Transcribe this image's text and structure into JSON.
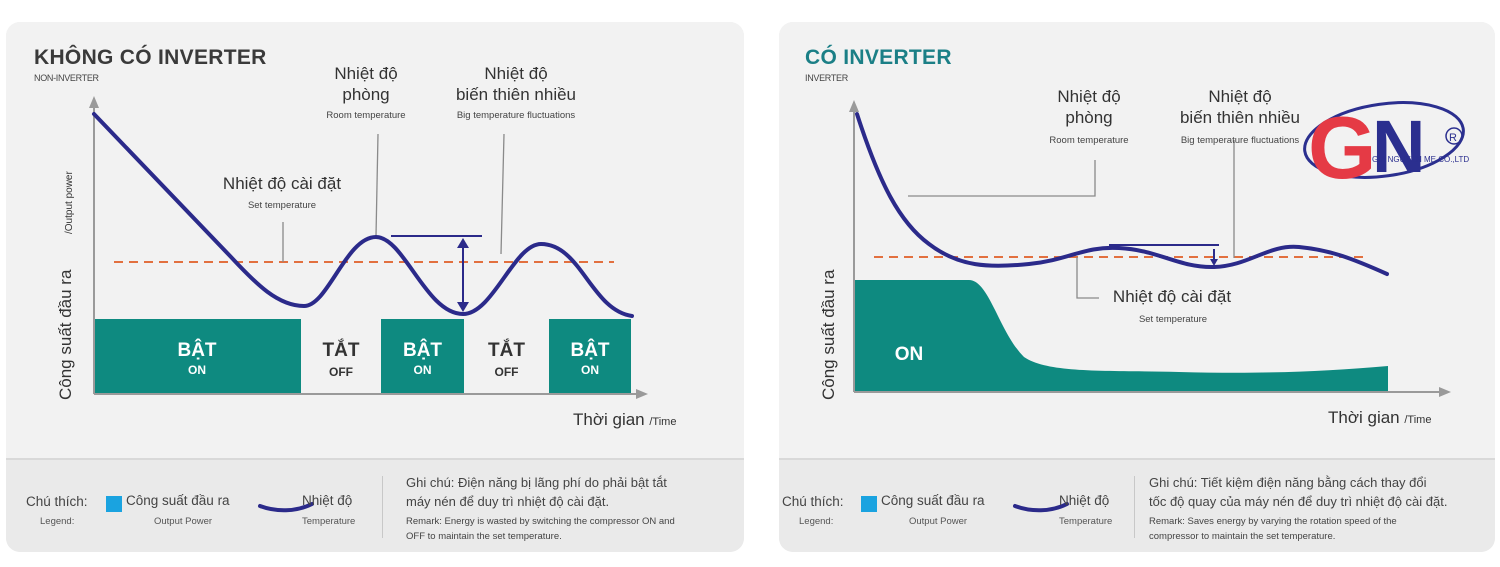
{
  "colors": {
    "teal": "#0e8a80",
    "curve": "#2b2a8a",
    "set_line": "#e2703f",
    "legend_swatch": "#1aa3e0",
    "title_left": "#3a3a3a",
    "title_right": "#1b7f86"
  },
  "left": {
    "title": "KHÔNG CÓ INVERTER",
    "subtitle": "NON-INVERTER",
    "room_vi_1": "Nhiệt độ",
    "room_vi_2": "phòng",
    "room_en": "Room temperature",
    "fluct_vi_1": "Nhiệt độ",
    "fluct_vi_2": "biến thiên nhiều",
    "fluct_en": "Big temperature fluctuations",
    "set_vi": "Nhiệt độ cài đặt",
    "set_en": "Set temperature",
    "ylabel_vi": "Công suất đầu ra",
    "ylabel_en": "/Output power",
    "xlabel_vi": "Thời gian",
    "xlabel_en": "/Time",
    "blocks": [
      {
        "vi": "BẬT",
        "en": "ON"
      },
      {
        "vi": "TẮT",
        "en": "OFF"
      },
      {
        "vi": "BẬT",
        "en": "ON"
      },
      {
        "vi": "TẮT",
        "en": "OFF"
      },
      {
        "vi": "BẬT",
        "en": "ON"
      }
    ],
    "legend": {
      "title_vi": "Chú thích:",
      "title_en": "Legend:",
      "power_vi": "Công suất đầu ra",
      "power_en": "Output Power",
      "temp_vi": "Nhiệt độ",
      "temp_en": "Temperature"
    },
    "note_vi_1": "Ghi chú: Điện năng bị lãng phí do phải bật tắt",
    "note_vi_2": "máy nén để duy trì nhiệt độ cài đặt.",
    "note_en_1": "Remark: Energy is wasted by switching the compressor ON and",
    "note_en_2": "OFF to maintain the set temperature."
  },
  "right": {
    "title": "CÓ INVERTER",
    "subtitle": "INVERTER",
    "room_vi_1": "Nhiệt độ",
    "room_vi_2": "phòng",
    "room_en": "Room temperature",
    "fluct_vi_1": "Nhiệt độ",
    "fluct_vi_2": "biến thiên nhiều",
    "fluct_en": "Big temperature fluctuations",
    "set_vi": "Nhiệt độ cài đặt",
    "set_en": "Set temperature",
    "ylabel_vi": "Công suất đầu ra",
    "xlabel_vi": "Thời gian",
    "xlabel_en": "/Time",
    "on_label": "ON",
    "legend": {
      "title_vi": "Chú thích:",
      "title_en": "Legend:",
      "power_vi": "Công suất đầu ra",
      "power_en": "Output Power",
      "temp_vi": "Nhiệt độ",
      "temp_en": "Temperature"
    },
    "note_vi_1": "Ghi chú: Tiết kiệm điện năng bằng cách thay đổi",
    "note_vi_2": "tốc độ quay của máy nén để duy trì nhiệt độ cài đặt.",
    "note_en_1": "Remark: Saves energy by varying the rotation speed of the",
    "note_en_2": "compressor to maintain the set temperature."
  },
  "logo": {
    "letters": "GN",
    "company": "GIA NGUYEN ME CO.,LTD",
    "registered": "R"
  }
}
